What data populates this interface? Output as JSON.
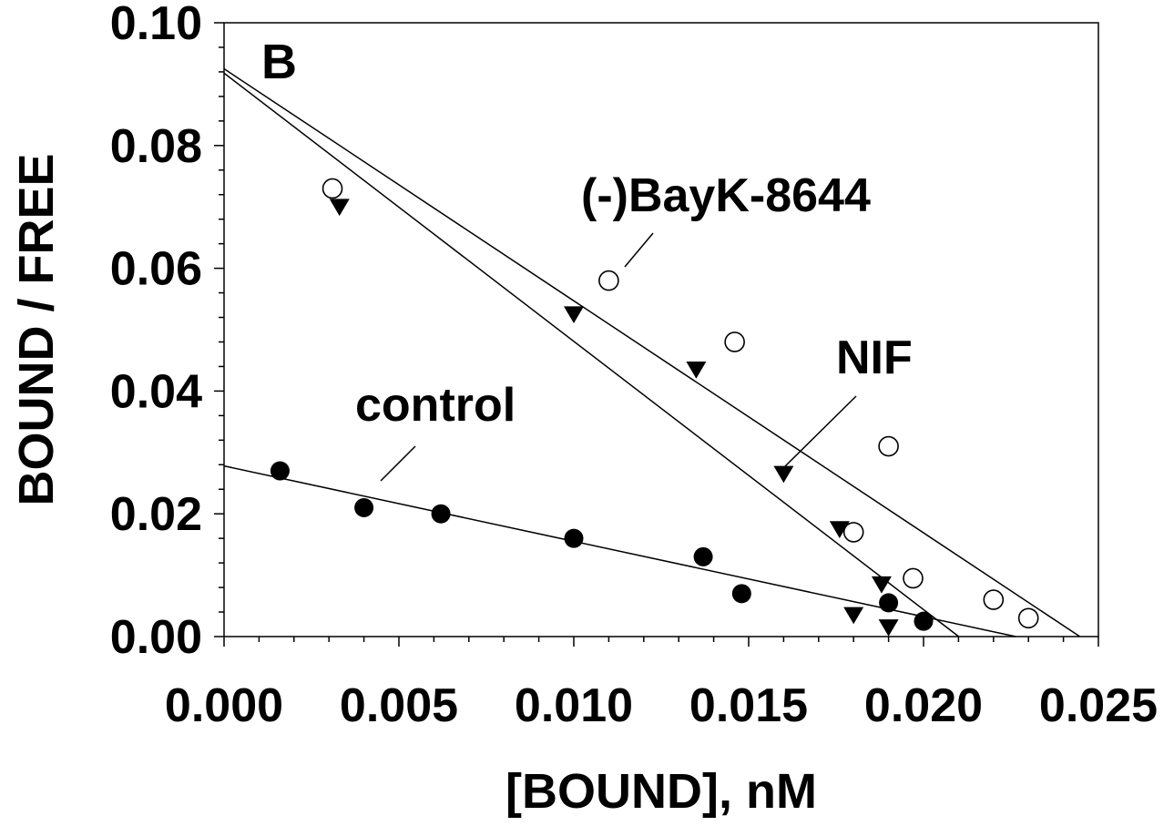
{
  "chart_data": {
    "type": "scatter",
    "panel_label": "B",
    "xlabel": "[BOUND], nM",
    "ylabel": "BOUND / FREE",
    "xlim": [
      0,
      0.025
    ],
    "ylim": [
      0,
      0.1
    ],
    "x_ticks": [
      "0.000",
      "0.005",
      "0.010",
      "0.015",
      "0.020",
      "0.025"
    ],
    "y_ticks": [
      "0.00",
      "0.02",
      "0.04",
      "0.06",
      "0.08",
      "0.10"
    ],
    "grid": false,
    "series": [
      {
        "name": "control",
        "marker": "filled-circle",
        "points": [
          [
            0.0016,
            0.027
          ],
          [
            0.004,
            0.021
          ],
          [
            0.0062,
            0.02
          ],
          [
            0.01,
            0.016
          ],
          [
            0.0137,
            0.013
          ],
          [
            0.0148,
            0.007
          ],
          [
            0.019,
            0.0055
          ],
          [
            0.02,
            0.0025
          ]
        ],
        "fit": {
          "intercept": 0.0278,
          "slope": -1.228
        }
      },
      {
        "name": "(-)BayK-8644",
        "marker": "open-circle",
        "points": [
          [
            0.0031,
            0.073
          ],
          [
            0.011,
            0.058
          ],
          [
            0.0146,
            0.048
          ],
          [
            0.019,
            0.031
          ],
          [
            0.018,
            0.017
          ],
          [
            0.0197,
            0.0095
          ],
          [
            0.022,
            0.006
          ],
          [
            0.023,
            0.003
          ]
        ],
        "fit": {
          "intercept": 0.0925,
          "slope": -3.78
        }
      },
      {
        "name": "NIF",
        "marker": "filled-triangle-down",
        "points": [
          [
            0.0033,
            0.07
          ],
          [
            0.01,
            0.0525
          ],
          [
            0.0135,
            0.0435
          ],
          [
            0.016,
            0.0265
          ],
          [
            0.0176,
            0.0175
          ],
          [
            0.0188,
            0.0085
          ],
          [
            0.018,
            0.0035
          ],
          [
            0.019,
            0.0015
          ]
        ],
        "fit": {
          "intercept": 0.0918,
          "slope": -4.37
        }
      }
    ],
    "annotations": [
      {
        "text": "(-)BayK-8644",
        "series": "(-)BayK-8644"
      },
      {
        "text": "NIF",
        "series": "NIF"
      },
      {
        "text": "control",
        "series": "control"
      }
    ]
  }
}
